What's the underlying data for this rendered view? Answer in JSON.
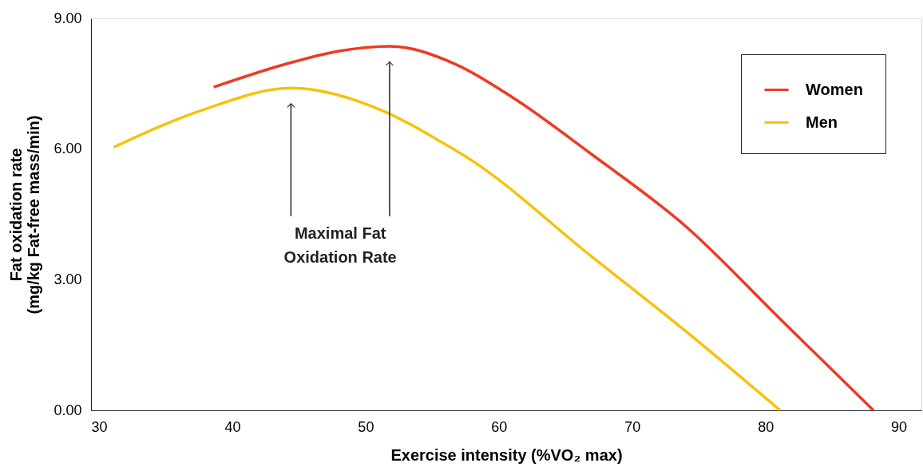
{
  "chart_data": {
    "type": "line",
    "xlabel": "Exercise intensity (%VO₂ max)",
    "ylabel": "Fat oxidation rate\n(mg/kg Fat-free mass/min)",
    "series": [
      {
        "name": "Women",
        "color": "#ee3a24",
        "x": [
          38.6,
          44.0,
          48.0,
          51.8,
          56.8,
          61.0,
          67.0,
          74.0,
          81.1,
          88.1
        ],
        "values": [
          7.42,
          7.95,
          8.25,
          8.36,
          7.94,
          7.19,
          5.87,
          4.23,
          2.1,
          0
        ]
      },
      {
        "name": "Men",
        "color": "#f7c20c",
        "x": [
          31.1,
          37.8,
          44.4,
          51.5,
          55.8,
          57.7,
          67.0,
          74.0,
          81.1
        ],
        "values": [
          6.04,
          6.9,
          7.4,
          6.85,
          6.14,
          5.79,
          3.52,
          1.82,
          0
        ]
      }
    ],
    "xlim": [
      29.4,
      91.7
    ],
    "xticks": [
      30,
      40,
      50,
      60,
      70,
      80,
      90
    ],
    "ylim": [
      0,
      9
    ],
    "yticks": [
      {
        "value": 0,
        "label": "0.00"
      },
      {
        "value": 3,
        "label": "3.00"
      },
      {
        "value": 6,
        "label": "6.00"
      },
      {
        "value": 9,
        "label": "9.00"
      }
    ],
    "annotations": [
      "Maximal Fat Oxidation Rate"
    ],
    "grid": false,
    "legend": "top right",
    "marker": "none",
    "line_style": "solid"
  }
}
